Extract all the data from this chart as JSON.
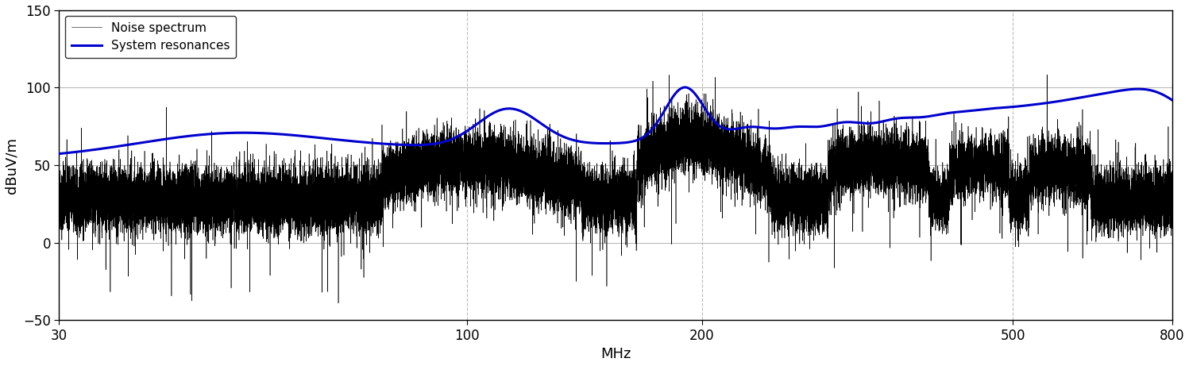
{
  "xlabel": "MHz",
  "ylabel": "dBuV/m",
  "xlim": [
    30,
    800
  ],
  "ylim": [
    -50,
    150
  ],
  "yticks": [
    -50,
    0,
    50,
    100,
    150
  ],
  "xticks": [
    30,
    100,
    200,
    500,
    800
  ],
  "noise_color": "#000000",
  "resonance_color": "#0000cd",
  "noise_label": "Noise spectrum",
  "resonance_label": "System resonances",
  "background_color": "#ffffff",
  "grid_color": "#aaaaaa",
  "noise_lw": 0.4,
  "resonance_lw": 2.2,
  "legend_fontsize": 11,
  "axis_fontsize": 13,
  "tick_fontsize": 12
}
